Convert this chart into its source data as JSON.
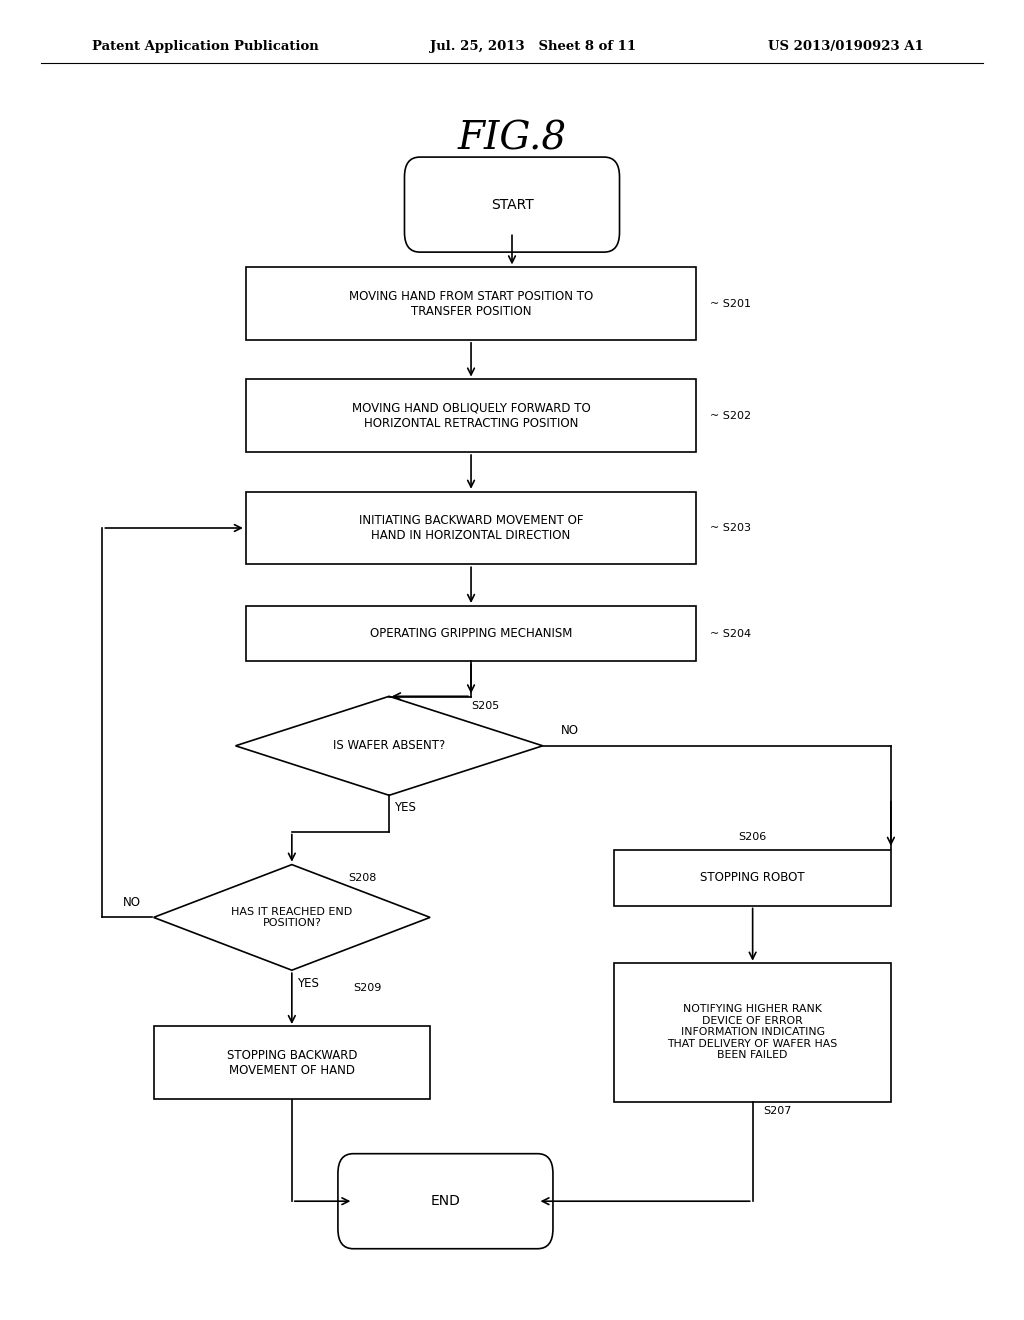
{
  "title": "FIG.8",
  "header_left": "Patent Application Publication",
  "header_mid": "Jul. 25, 2013   Sheet 8 of 11",
  "header_right": "US 2013/0190923 A1",
  "bg_color": "#ffffff",
  "box_color": "#000000",
  "text_color": "#000000"
}
